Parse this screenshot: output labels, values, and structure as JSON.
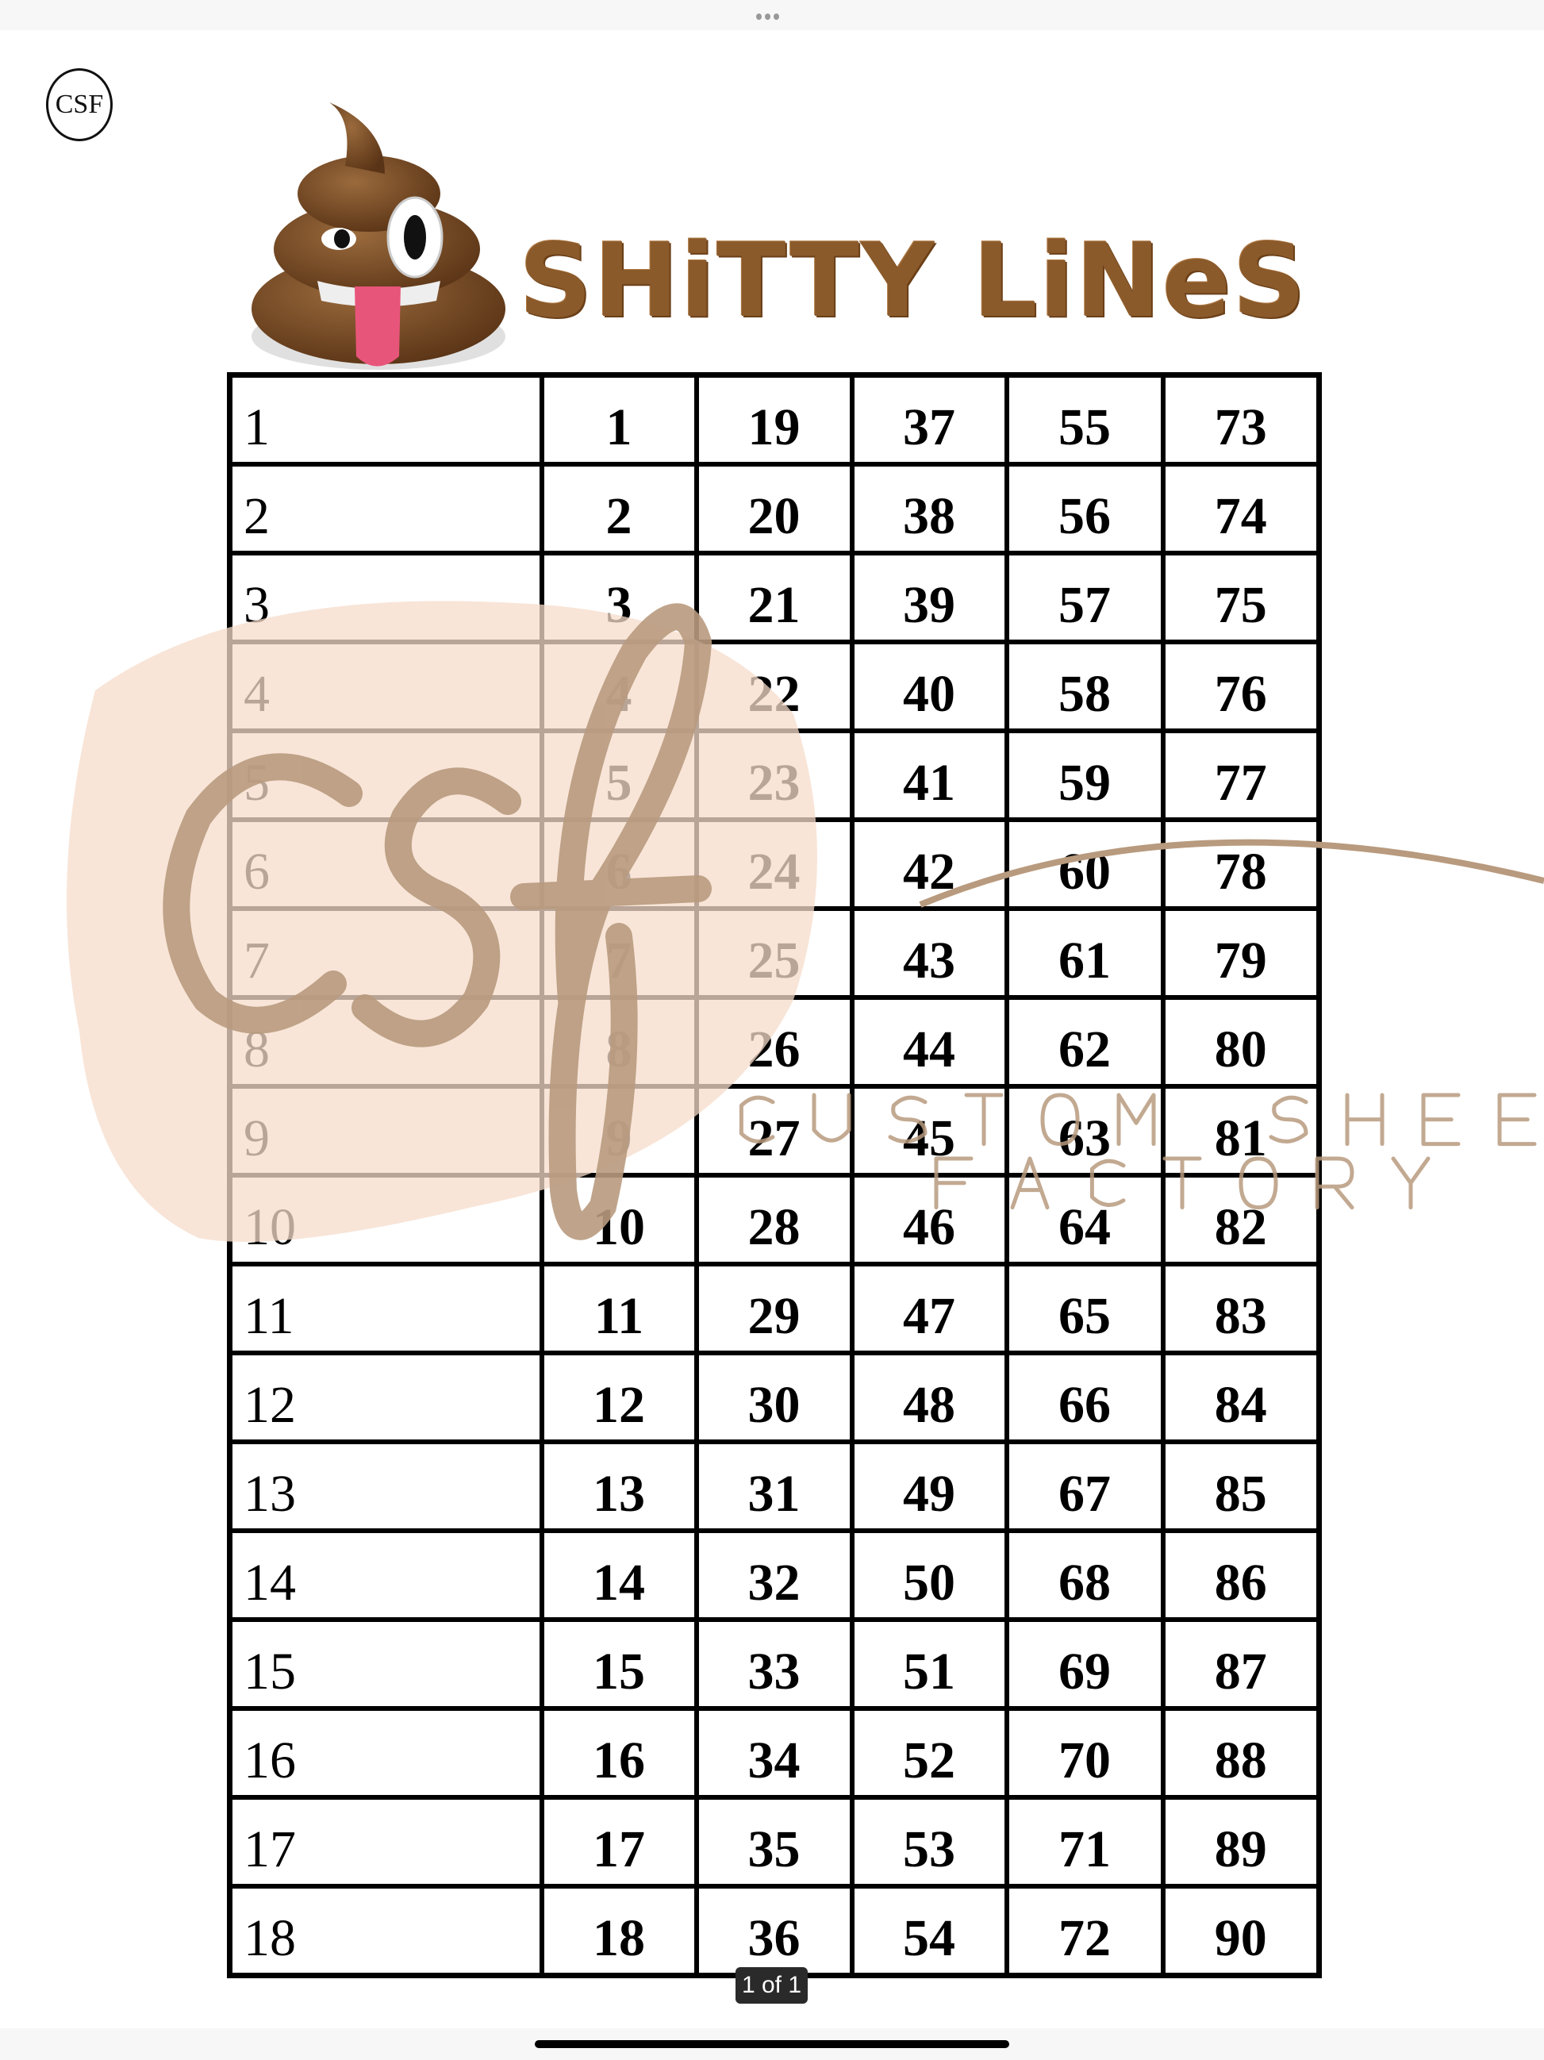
{
  "header": {
    "brand_logo_text": "CSF",
    "title": "SHiTTY LiNeS",
    "title_color": "#8a5a2b"
  },
  "watermark": {
    "script_text": "csf",
    "line1": "CUSTOM SHEETS",
    "line2": "FACTORY",
    "color": "#b89a7e",
    "blob_color": "#f6dccb"
  },
  "table": {
    "rows": [
      {
        "label": "1",
        "nums": [
          "1",
          "19",
          "37",
          "55",
          "73"
        ]
      },
      {
        "label": "2",
        "nums": [
          "2",
          "20",
          "38",
          "56",
          "74"
        ]
      },
      {
        "label": "3",
        "nums": [
          "3",
          "21",
          "39",
          "57",
          "75"
        ]
      },
      {
        "label": "4",
        "nums": [
          "4",
          "22",
          "40",
          "58",
          "76"
        ]
      },
      {
        "label": "5",
        "nums": [
          "5",
          "23",
          "41",
          "59",
          "77"
        ]
      },
      {
        "label": "6",
        "nums": [
          "6",
          "24",
          "42",
          "60",
          "78"
        ]
      },
      {
        "label": "7",
        "nums": [
          "7",
          "25",
          "43",
          "61",
          "79"
        ]
      },
      {
        "label": "8",
        "nums": [
          "8",
          "26",
          "44",
          "62",
          "80"
        ]
      },
      {
        "label": "9",
        "nums": [
          "9",
          "27",
          "45",
          "63",
          "81"
        ]
      },
      {
        "label": "10",
        "nums": [
          "10",
          "28",
          "46",
          "64",
          "82"
        ]
      },
      {
        "label": "11",
        "nums": [
          "11",
          "29",
          "47",
          "65",
          "83"
        ]
      },
      {
        "label": "12",
        "nums": [
          "12",
          "30",
          "48",
          "66",
          "84"
        ]
      },
      {
        "label": "13",
        "nums": [
          "13",
          "31",
          "49",
          "67",
          "85"
        ]
      },
      {
        "label": "14",
        "nums": [
          "14",
          "32",
          "50",
          "68",
          "86"
        ]
      },
      {
        "label": "15",
        "nums": [
          "15",
          "33",
          "51",
          "69",
          "87"
        ]
      },
      {
        "label": "16",
        "nums": [
          "16",
          "34",
          "52",
          "70",
          "88"
        ]
      },
      {
        "label": "17",
        "nums": [
          "17",
          "35",
          "53",
          "71",
          "89"
        ]
      },
      {
        "label": "18",
        "nums": [
          "18",
          "36",
          "54",
          "72",
          "90"
        ]
      }
    ]
  },
  "footer": {
    "page_indicator": "1 of 1"
  },
  "icons": {
    "top": "more-dots-icon",
    "emoji": "poop-emoji-icon"
  }
}
